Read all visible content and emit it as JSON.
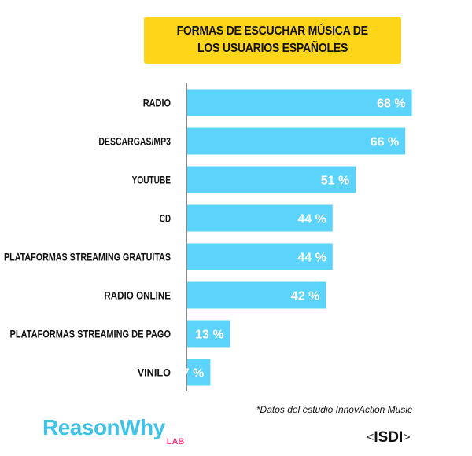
{
  "title": {
    "line1": "FORMAS DE ESCUCHAR MÚSICA DE",
    "line2": "LOS USUARIOS ESPAÑOLES"
  },
  "footnote": "*Datos del estudio InnovAction Music",
  "brand": {
    "main": "ReasonWhy",
    "sub": "LAB"
  },
  "partner_logo": {
    "left": "<",
    "name": "ISDI",
    "right": ">"
  },
  "colors": {
    "bar": "#5cd3fb",
    "title_bg": "#ffd51a",
    "brand": "#3ec3e6",
    "brand_sub": "#e8417f"
  },
  "chart_data": {
    "type": "bar",
    "orientation": "horizontal",
    "title": "FORMAS DE ESCUCHAR MÚSICA DE LOS USUARIOS ESPAÑOLES",
    "categories": [
      "RADIO",
      "DESCARGAS/MP3",
      "YOUTUBE",
      "CD",
      "PLATAFORMAS STREAMING GRATUITAS",
      "RADIO ONLINE",
      "PLATAFORMAS STREAMING DE PAGO",
      "VINILO"
    ],
    "values": [
      68,
      66,
      51,
      44,
      44,
      42,
      13,
      7
    ],
    "value_labels": [
      "68 %",
      "66 %",
      "51 %",
      "44 %",
      "44 %",
      "42 %",
      "13 %",
      "7 %"
    ],
    "unit": "%",
    "xlim": [
      0,
      100
    ],
    "grid": false,
    "legend": "none"
  }
}
